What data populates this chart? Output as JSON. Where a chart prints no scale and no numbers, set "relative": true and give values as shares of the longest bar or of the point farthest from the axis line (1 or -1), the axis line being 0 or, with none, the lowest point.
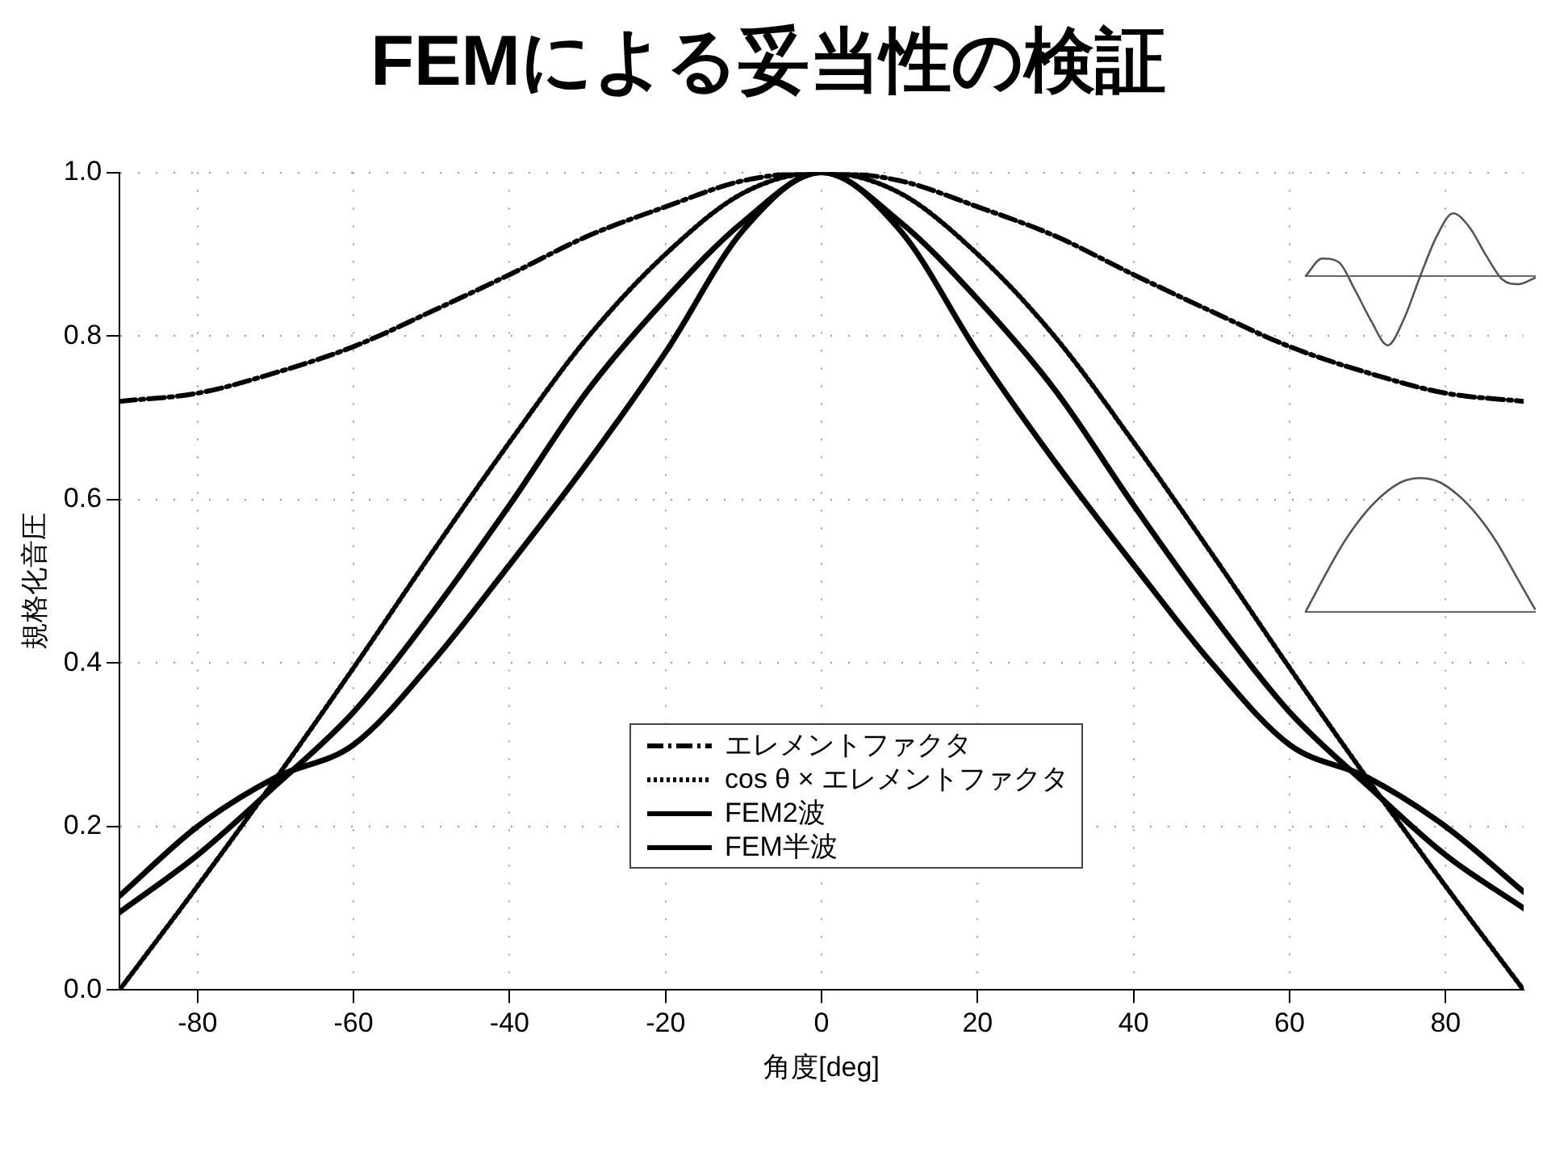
{
  "chart_data": [
    {
      "type": "line",
      "title": "FEMによる妥当性の検証",
      "xlabel": "角度[deg]",
      "ylabel": "規格化音圧",
      "x": [
        -90,
        -80,
        -70,
        -60,
        -50,
        -40,
        -30,
        -20,
        -10,
        0,
        10,
        20,
        30,
        40,
        50,
        60,
        70,
        80,
        90
      ],
      "series": [
        {
          "name": "エレメントファクタ",
          "color": "#000000",
          "line_style": "dashed",
          "values": [
            0.72,
            0.73,
            0.755,
            0.787,
            0.83,
            0.875,
            0.922,
            0.958,
            0.99,
            1.0,
            0.99,
            0.958,
            0.922,
            0.875,
            0.83,
            0.787,
            0.755,
            0.73,
            0.72
          ]
        },
        {
          "name": "cos θ × エレメントファクタ",
          "color": "#000000",
          "line_style": "dotted",
          "values": [
            0.0,
            0.127,
            0.258,
            0.394,
            0.534,
            0.67,
            0.798,
            0.9,
            0.975,
            1.0,
            0.975,
            0.9,
            0.798,
            0.67,
            0.534,
            0.394,
            0.258,
            0.127,
            0.0
          ]
        },
        {
          "name": "FEM2波",
          "color": "#000000",
          "line_style": "solid",
          "values": [
            0.095,
            0.165,
            0.25,
            0.34,
            0.46,
            0.593,
            0.733,
            0.845,
            0.94,
            1.0,
            0.94,
            0.845,
            0.733,
            0.593,
            0.46,
            0.34,
            0.25,
            0.165,
            0.1
          ]
        },
        {
          "name": "FEM半波",
          "color": "#000000",
          "line_style": "solid",
          "values": [
            0.115,
            0.2,
            0.26,
            0.3,
            0.4,
            0.52,
            0.645,
            0.78,
            0.93,
            1.0,
            0.93,
            0.78,
            0.645,
            0.52,
            0.4,
            0.3,
            0.26,
            0.2,
            0.12
          ]
        }
      ],
      "xlim": [
        -90,
        90
      ],
      "xticks": [
        -80,
        -60,
        -40,
        -20,
        0,
        20,
        40,
        60,
        80
      ],
      "ylim": [
        0,
        1
      ],
      "yticks": [
        {
          "value": 0,
          "label": "0.0"
        },
        {
          "value": 0.2,
          "label": "0.2"
        },
        {
          "value": 0.4,
          "label": "0.4"
        },
        {
          "value": 0.6,
          "label": "0.6"
        },
        {
          "value": 0.8,
          "label": "0.8"
        },
        {
          "value": 1,
          "label": "1.0"
        }
      ],
      "grid": true,
      "legend": "bottom",
      "marker": "none"
    },
    {
      "type": "line",
      "relative": true,
      "categories": [
        null,
        null,
        null,
        null,
        null,
        null,
        null,
        null,
        null,
        null,
        null,
        null,
        null,
        null,
        null
      ],
      "series": [
        {
          "color": "#555555",
          "values": [
            0,
            0.25,
            0.2,
            -0.2,
            -0.65,
            -1.0,
            -0.62,
            0,
            0.57,
            0.9,
            0.7,
            0.3,
            -0.05,
            -0.12,
            -0.03
          ]
        }
      ]
    },
    {
      "type": "line",
      "relative": true,
      "categories": [
        null,
        null,
        null,
        null,
        null,
        null,
        null,
        null,
        null,
        null,
        null,
        null,
        null
      ],
      "series": [
        {
          "color": "#555555",
          "values": [
            0,
            0.27,
            0.52,
            0.72,
            0.87,
            0.97,
            1.0,
            0.97,
            0.87,
            0.72,
            0.52,
            0.27,
            0.02
          ]
        }
      ]
    }
  ]
}
